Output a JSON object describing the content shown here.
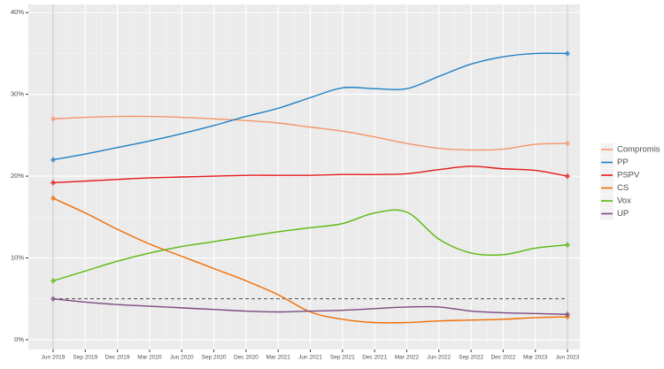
{
  "chart_data": {
    "type": "line",
    "categories": [
      "Jun 2019",
      "Sep 2019",
      "Dec 2019",
      "Mar 2020",
      "Jun 2020",
      "Sep 2020",
      "Dec 2020",
      "Mar 2021",
      "Jun 2021",
      "Sep 2021",
      "Dec 2021",
      "Mar 2022",
      "Jun 2022",
      "Sep 2022",
      "Dec 2022",
      "Mar 2023",
      "Jun 2023"
    ],
    "series": [
      {
        "name": "Compromis",
        "color": "#f4956b",
        "values": [
          27,
          27.2,
          27.3,
          27.3,
          27.2,
          27.0,
          26.8,
          26.5,
          26.0,
          25.5,
          24.8,
          24.0,
          23.4,
          23.2,
          23.3,
          23.9,
          24.0
        ]
      },
      {
        "name": "PP",
        "color": "#1f7fc4",
        "values": [
          22,
          22.7,
          23.5,
          24.3,
          25.2,
          26.2,
          27.3,
          28.3,
          29.6,
          30.8,
          30.7,
          30.7,
          32.2,
          33.7,
          34.6,
          35.0,
          35.0
        ]
      },
      {
        "name": "PSPV",
        "color": "#e41a1c",
        "values": [
          19.2,
          19.4,
          19.6,
          19.8,
          19.9,
          20.0,
          20.1,
          20.1,
          20.1,
          20.2,
          20.2,
          20.3,
          20.8,
          21.2,
          20.9,
          20.7,
          20.0
        ]
      },
      {
        "name": "CS",
        "color": "#f06c00",
        "values": [
          17.3,
          15.5,
          13.5,
          11.7,
          10.2,
          8.7,
          7.2,
          5.5,
          3.4,
          2.5,
          2.1,
          2.1,
          2.3,
          2.4,
          2.5,
          2.7,
          2.8
        ]
      },
      {
        "name": "Vox",
        "color": "#5ab80e",
        "values": [
          7.2,
          8.4,
          9.6,
          10.6,
          11.4,
          12.0,
          12.6,
          13.2,
          13.7,
          14.2,
          15.5,
          15.6,
          12.3,
          10.6,
          10.4,
          11.2,
          11.6
        ]
      },
      {
        "name": "UP",
        "color": "#7b4a7f",
        "values": [
          5.0,
          4.6,
          4.3,
          4.1,
          3.9,
          3.7,
          3.5,
          3.4,
          3.5,
          3.6,
          3.8,
          4.0,
          4.0,
          3.5,
          3.3,
          3.2,
          3.1
        ]
      }
    ],
    "ylim": [
      -1.2,
      41
    ],
    "yticks": [
      {
        "value": 0,
        "label": "0%"
      },
      {
        "value": 10,
        "label": "10%"
      },
      {
        "value": 20,
        "label": "20%"
      },
      {
        "value": 30,
        "label": "30%"
      },
      {
        "value": 40,
        "label": "40%"
      }
    ],
    "threshold": 5,
    "grid": true
  }
}
